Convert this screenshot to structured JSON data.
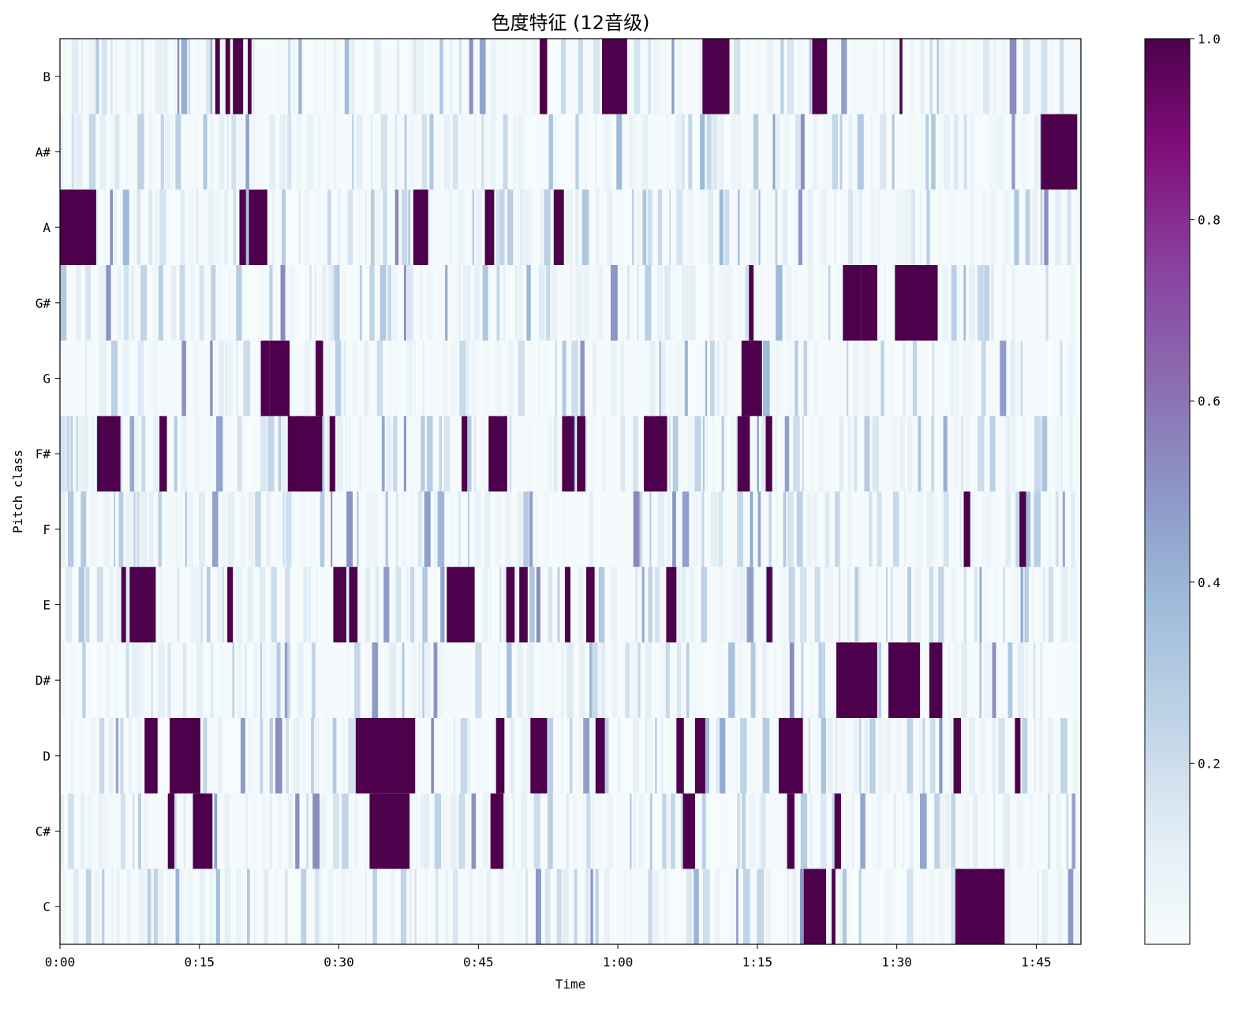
{
  "chart_data": {
    "type": "heatmap",
    "title": "色度特征 (12音级)",
    "xlabel": "Time",
    "ylabel": "Pitch class",
    "x_tick_labels": [
      "0:00",
      "0:15",
      "0:30",
      "0:45",
      "1:00",
      "1:15",
      "1:30",
      "1:45"
    ],
    "x_tick_seconds": [
      0,
      15,
      30,
      45,
      60,
      75,
      90,
      105
    ],
    "xlim_seconds": [
      0,
      109.8
    ],
    "y_categories": [
      "C",
      "C#",
      "D",
      "D#",
      "E",
      "F",
      "F#",
      "G",
      "G#",
      "A",
      "A#",
      "B"
    ],
    "colorbar": {
      "cmap": "BuPu",
      "vmin": 0.0,
      "vmax": 1.0,
      "tick_values": [
        0.2,
        0.4,
        0.6,
        0.8,
        1.0
      ],
      "tick_labels": [
        "0.2",
        "0.4",
        "0.6",
        "0.8",
        "1.0"
      ]
    },
    "strong_segments": {
      "B": [
        [
          16.7,
          17.2
        ],
        [
          17.8,
          18.3
        ],
        [
          18.6,
          19.7
        ],
        [
          20.2,
          20.6
        ],
        [
          51.6,
          52.4
        ],
        [
          58.3,
          61.0
        ],
        [
          69.1,
          72.0
        ],
        [
          80.9,
          82.5
        ],
        [
          90.3,
          90.6
        ]
      ],
      "A#": [
        [
          105.5,
          109.4
        ]
      ],
      "A": [
        [
          0.0,
          3.9
        ],
        [
          19.3,
          20.0
        ],
        [
          20.3,
          22.3
        ],
        [
          38.0,
          39.6
        ],
        [
          45.7,
          46.7
        ],
        [
          53.1,
          54.2
        ]
      ],
      "G#": [
        [
          74.1,
          74.6
        ],
        [
          84.2,
          86.2
        ],
        [
          86.2,
          87.9
        ],
        [
          89.8,
          94.4
        ]
      ],
      "G": [
        [
          21.6,
          22.5
        ],
        [
          22.5,
          24.7
        ],
        [
          27.5,
          28.3
        ],
        [
          73.3,
          75.5
        ]
      ],
      "F#": [
        [
          4.0,
          6.5
        ],
        [
          10.7,
          11.5
        ],
        [
          24.5,
          28.2
        ],
        [
          29.0,
          29.6
        ],
        [
          43.2,
          43.8
        ],
        [
          46.1,
          48.1
        ],
        [
          54.0,
          55.3
        ],
        [
          55.6,
          56.5
        ],
        [
          62.8,
          65.3
        ],
        [
          72.9,
          74.2
        ],
        [
          75.9,
          76.6
        ]
      ],
      "F": [
        [
          97.2,
          97.9
        ],
        [
          103.2,
          103.9
        ]
      ],
      "E": [
        [
          6.6,
          7.1
        ],
        [
          7.5,
          10.3
        ],
        [
          18.0,
          18.6
        ],
        [
          29.4,
          30.8
        ],
        [
          31.1,
          32.0
        ],
        [
          41.6,
          44.6
        ],
        [
          48.0,
          48.9
        ],
        [
          49.4,
          50.3
        ],
        [
          54.3,
          54.9
        ],
        [
          56.6,
          57.5
        ],
        [
          65.2,
          66.3
        ],
        [
          76.0,
          76.6
        ]
      ],
      "D#": [
        [
          83.5,
          87.9
        ],
        [
          89.1,
          92.5
        ],
        [
          93.5,
          94.9
        ]
      ],
      "D": [
        [
          9.1,
          10.5
        ],
        [
          11.8,
          15.1
        ],
        [
          31.8,
          38.2
        ],
        [
          46.9,
          47.8
        ],
        [
          50.6,
          52.4
        ],
        [
          57.6,
          58.6
        ],
        [
          66.3,
          67.1
        ],
        [
          68.3,
          69.4
        ],
        [
          77.3,
          79.9
        ],
        [
          96.1,
          96.9
        ],
        [
          102.7,
          103.3
        ]
      ],
      "C#": [
        [
          11.6,
          12.3
        ],
        [
          14.3,
          16.4
        ],
        [
          33.3,
          37.6
        ],
        [
          46.3,
          47.7
        ],
        [
          67.0,
          68.3
        ],
        [
          78.2,
          79.0
        ],
        [
          83.3,
          84.0
        ]
      ],
      "C": [
        [
          80.0,
          82.4
        ],
        [
          83.0,
          83.4
        ],
        [
          96.3,
          101.6
        ]
      ]
    }
  }
}
